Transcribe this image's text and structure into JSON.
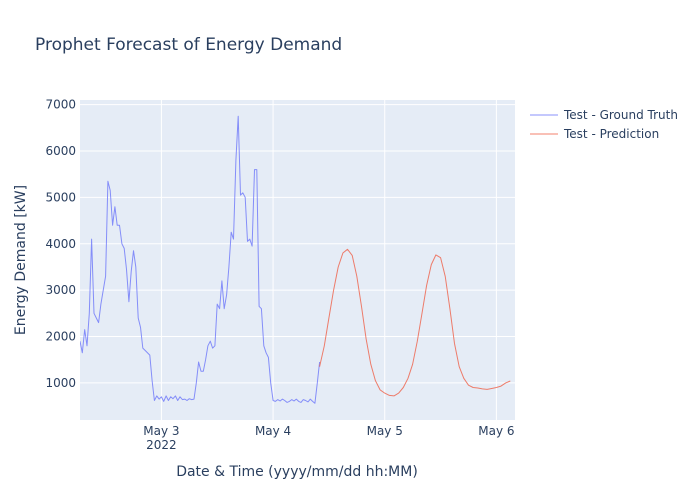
{
  "chart_data": {
    "type": "line",
    "title": "Prophet Forecast of Energy Demand",
    "xlabel": "Date & Time (yyyy/mm/dd hh:MM)",
    "ylabel": "Energy Demand [kW]",
    "xlim": [
      "2022-05-02 06:30",
      "2022-05-06 04:00"
    ],
    "ylim": [
      200,
      7100
    ],
    "grid": true,
    "legend_position": "right",
    "x_ticks": [
      {
        "t": "2022-05-03 00:00",
        "label": "May 3",
        "sublabel": "2022"
      },
      {
        "t": "2022-05-04 00:00",
        "label": "May 4",
        "sublabel": ""
      },
      {
        "t": "2022-05-05 00:00",
        "label": "May 5",
        "sublabel": ""
      },
      {
        "t": "2022-05-06 00:00",
        "label": "May 6",
        "sublabel": ""
      }
    ],
    "y_ticks": [
      1000,
      2000,
      3000,
      4000,
      5000,
      6000,
      7000
    ],
    "series": [
      {
        "name": "Test - Ground Truth",
        "color": "#636efa",
        "points": [
          [
            "2022-05-02 06:30",
            1900
          ],
          [
            "2022-05-02 07:00",
            1650
          ],
          [
            "2022-05-02 07:30",
            2150
          ],
          [
            "2022-05-02 08:00",
            1800
          ],
          [
            "2022-05-02 08:30",
            2500
          ],
          [
            "2022-05-02 09:00",
            4100
          ],
          [
            "2022-05-02 09:30",
            2500
          ],
          [
            "2022-05-02 10:00",
            2400
          ],
          [
            "2022-05-02 10:30",
            2300
          ],
          [
            "2022-05-02 11:00",
            2700
          ],
          [
            "2022-05-02 12:00",
            3300
          ],
          [
            "2022-05-02 12:30",
            5350
          ],
          [
            "2022-05-02 13:00",
            5150
          ],
          [
            "2022-05-02 13:30",
            4400
          ],
          [
            "2022-05-02 14:00",
            4800
          ],
          [
            "2022-05-02 14:30",
            4400
          ],
          [
            "2022-05-02 15:00",
            4400
          ],
          [
            "2022-05-02 15:30",
            4000
          ],
          [
            "2022-05-02 16:00",
            3900
          ],
          [
            "2022-05-02 16:30",
            3450
          ],
          [
            "2022-05-02 17:00",
            2750
          ],
          [
            "2022-05-02 17:30",
            3400
          ],
          [
            "2022-05-02 18:00",
            3850
          ],
          [
            "2022-05-02 18:30",
            3500
          ],
          [
            "2022-05-02 19:00",
            2400
          ],
          [
            "2022-05-02 19:30",
            2200
          ],
          [
            "2022-05-02 20:00",
            1750
          ],
          [
            "2022-05-02 20:30",
            1700
          ],
          [
            "2022-05-02 21:30",
            1600
          ],
          [
            "2022-05-02 22:00",
            1050
          ],
          [
            "2022-05-02 22:30",
            620
          ],
          [
            "2022-05-02 23:00",
            720
          ],
          [
            "2022-05-02 23:30",
            650
          ],
          [
            "2022-05-03 00:00",
            700
          ],
          [
            "2022-05-03 00:30",
            600
          ],
          [
            "2022-05-03 01:00",
            720
          ],
          [
            "2022-05-03 01:30",
            620
          ],
          [
            "2022-05-03 02:00",
            700
          ],
          [
            "2022-05-03 02:30",
            660
          ],
          [
            "2022-05-03 03:00",
            720
          ],
          [
            "2022-05-03 03:30",
            620
          ],
          [
            "2022-05-03 04:00",
            700
          ],
          [
            "2022-05-03 04:30",
            640
          ],
          [
            "2022-05-03 05:00",
            650
          ],
          [
            "2022-05-03 05:30",
            620
          ],
          [
            "2022-05-03 06:00",
            660
          ],
          [
            "2022-05-03 06:30",
            640
          ],
          [
            "2022-05-03 07:00",
            650
          ],
          [
            "2022-05-03 07:30",
            1000
          ],
          [
            "2022-05-03 08:00",
            1450
          ],
          [
            "2022-05-03 08:30",
            1250
          ],
          [
            "2022-05-03 09:00",
            1250
          ],
          [
            "2022-05-03 09:30",
            1500
          ],
          [
            "2022-05-03 10:00",
            1800
          ],
          [
            "2022-05-03 10:30",
            1900
          ],
          [
            "2022-05-03 11:00",
            1750
          ],
          [
            "2022-05-03 11:30",
            1800
          ],
          [
            "2022-05-03 12:00",
            2700
          ],
          [
            "2022-05-03 12:30",
            2600
          ],
          [
            "2022-05-03 13:00",
            3200
          ],
          [
            "2022-05-03 13:30",
            2600
          ],
          [
            "2022-05-03 14:00",
            2900
          ],
          [
            "2022-05-03 14:30",
            3500
          ],
          [
            "2022-05-03 15:00",
            4250
          ],
          [
            "2022-05-03 15:30",
            4100
          ],
          [
            "2022-05-03 16:00",
            5800
          ],
          [
            "2022-05-03 16:30",
            6750
          ],
          [
            "2022-05-03 17:00",
            5050
          ],
          [
            "2022-05-03 17:30",
            5100
          ],
          [
            "2022-05-03 18:00",
            5000
          ],
          [
            "2022-05-03 18:30",
            4050
          ],
          [
            "2022-05-03 19:00",
            4100
          ],
          [
            "2022-05-03 19:30",
            3950
          ],
          [
            "2022-05-03 20:00",
            5600
          ],
          [
            "2022-05-03 20:30",
            5600
          ],
          [
            "2022-05-03 21:00",
            2650
          ],
          [
            "2022-05-03 21:30",
            2600
          ],
          [
            "2022-05-03 22:00",
            1800
          ],
          [
            "2022-05-03 22:30",
            1650
          ],
          [
            "2022-05-03 23:00",
            1550
          ],
          [
            "2022-05-03 23:30",
            1000
          ],
          [
            "2022-05-04 00:00",
            620
          ],
          [
            "2022-05-04 00:30",
            600
          ],
          [
            "2022-05-04 01:00",
            640
          ],
          [
            "2022-05-04 01:30",
            610
          ],
          [
            "2022-05-04 02:00",
            650
          ],
          [
            "2022-05-04 02:30",
            620
          ],
          [
            "2022-05-04 03:00",
            580
          ],
          [
            "2022-05-04 03:30",
            600
          ],
          [
            "2022-05-04 04:00",
            640
          ],
          [
            "2022-05-04 04:30",
            610
          ],
          [
            "2022-05-04 05:00",
            650
          ],
          [
            "2022-05-04 05:30",
            600
          ],
          [
            "2022-05-04 06:00",
            580
          ],
          [
            "2022-05-04 06:30",
            640
          ],
          [
            "2022-05-04 07:00",
            620
          ],
          [
            "2022-05-04 07:30",
            590
          ],
          [
            "2022-05-04 08:00",
            650
          ],
          [
            "2022-05-04 08:30",
            600
          ],
          [
            "2022-05-04 09:00",
            560
          ],
          [
            "2022-05-04 09:30",
            1000
          ],
          [
            "2022-05-04 10:00",
            1450
          ]
        ]
      },
      {
        "name": "Test - Prediction",
        "color": "#ef553b",
        "points": [
          [
            "2022-05-04 10:00",
            1350
          ],
          [
            "2022-05-04 11:00",
            1800
          ],
          [
            "2022-05-04 12:00",
            2400
          ],
          [
            "2022-05-04 13:00",
            3000
          ],
          [
            "2022-05-04 14:00",
            3500
          ],
          [
            "2022-05-04 15:00",
            3800
          ],
          [
            "2022-05-04 16:00",
            3880
          ],
          [
            "2022-05-04 17:00",
            3750
          ],
          [
            "2022-05-04 18:00",
            3300
          ],
          [
            "2022-05-04 19:00",
            2650
          ],
          [
            "2022-05-04 20:00",
            1950
          ],
          [
            "2022-05-04 21:00",
            1400
          ],
          [
            "2022-05-04 22:00",
            1050
          ],
          [
            "2022-05-04 23:00",
            850
          ],
          [
            "2022-05-05 00:00",
            780
          ],
          [
            "2022-05-05 01:00",
            730
          ],
          [
            "2022-05-05 02:00",
            720
          ],
          [
            "2022-05-05 03:00",
            780
          ],
          [
            "2022-05-05 04:00",
            900
          ],
          [
            "2022-05-05 05:00",
            1100
          ],
          [
            "2022-05-05 06:00",
            1400
          ],
          [
            "2022-05-05 07:00",
            1900
          ],
          [
            "2022-05-05 08:00",
            2500
          ],
          [
            "2022-05-05 09:00",
            3100
          ],
          [
            "2022-05-05 10:00",
            3550
          ],
          [
            "2022-05-05 11:00",
            3760
          ],
          [
            "2022-05-05 12:00",
            3700
          ],
          [
            "2022-05-05 13:00",
            3300
          ],
          [
            "2022-05-05 14:00",
            2600
          ],
          [
            "2022-05-05 15:00",
            1850
          ],
          [
            "2022-05-05 16:00",
            1350
          ],
          [
            "2022-05-05 17:00",
            1100
          ],
          [
            "2022-05-05 18:00",
            950
          ],
          [
            "2022-05-05 19:00",
            900
          ],
          [
            "2022-05-05 20:00",
            890
          ],
          [
            "2022-05-05 21:00",
            870
          ],
          [
            "2022-05-05 22:00",
            860
          ],
          [
            "2022-05-05 23:00",
            880
          ],
          [
            "2022-05-06 00:00",
            900
          ],
          [
            "2022-05-06 01:00",
            930
          ],
          [
            "2022-05-06 02:00",
            1000
          ],
          [
            "2022-05-06 03:00",
            1040
          ]
        ]
      }
    ]
  }
}
